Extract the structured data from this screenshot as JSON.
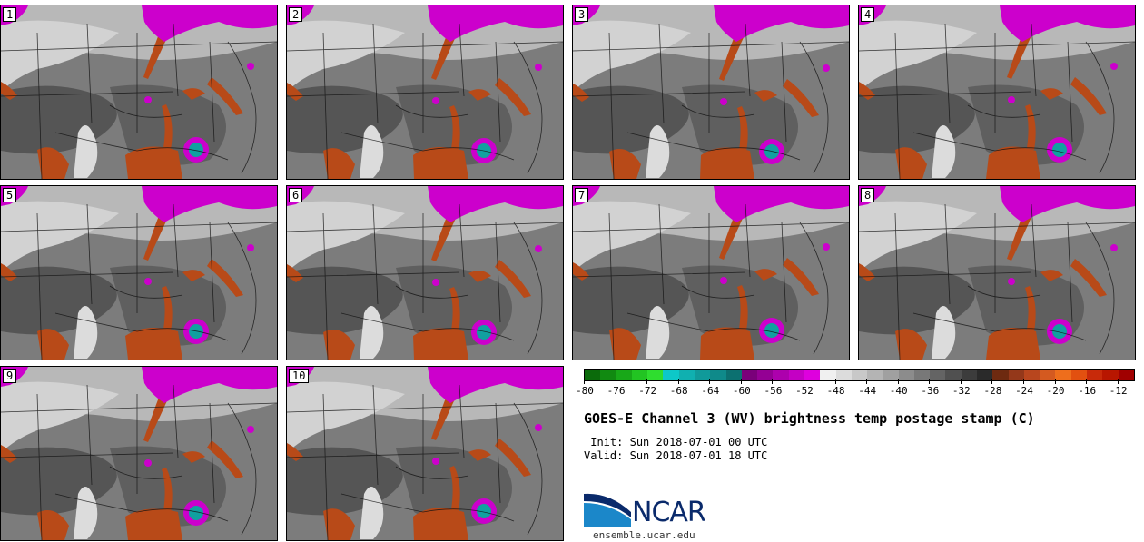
{
  "figure": {
    "title": "GOES-E Channel 3 (WV) brightness temp postage stamp (C)",
    "init_label": "Init:",
    "init_value": "Sun 2018-07-01 00 UTC",
    "valid_label": "Valid:",
    "valid_value": "Sun 2018-07-01 18 UTC"
  },
  "panels": [
    {
      "label": "1"
    },
    {
      "label": "2"
    },
    {
      "label": "3"
    },
    {
      "label": "4"
    },
    {
      "label": "5"
    },
    {
      "label": "6"
    },
    {
      "label": "7"
    },
    {
      "label": "8"
    },
    {
      "label": "9"
    },
    {
      "label": "10"
    }
  ],
  "colorbar": {
    "tick_labels": [
      "-80",
      "-76",
      "-72",
      "-68",
      "-64",
      "-60",
      "-56",
      "-52",
      "-48",
      "-44",
      "-40",
      "-36",
      "-32",
      "-28",
      "-24",
      "-20",
      "-16",
      "-12"
    ],
    "min": -80,
    "max": -10,
    "step": 2,
    "colors": [
      "#0b6b0b",
      "#118a11",
      "#18a818",
      "#22c422",
      "#2fdd2f",
      "#0dc8c8",
      "#10b0b0",
      "#109a9a",
      "#0f8a8a",
      "#0c7070",
      "#7a007a",
      "#940094",
      "#ad00ad",
      "#c400c4",
      "#de00de",
      "#f0f0f0",
      "#dcdcdc",
      "#c8c8c8",
      "#b4b4b4",
      "#a0a0a0",
      "#8c8c8c",
      "#787878",
      "#646464",
      "#505050",
      "#3c3c3c",
      "#2a2a2a",
      "#6e2a10",
      "#94381a",
      "#b8461e",
      "#d45a20",
      "#ee6e1c",
      "#e25010",
      "#c82a0a",
      "#b81600",
      "#a00000"
    ]
  },
  "branding": {
    "logo_text": "NCAR",
    "website": "ensemble.ucar.edu"
  }
}
